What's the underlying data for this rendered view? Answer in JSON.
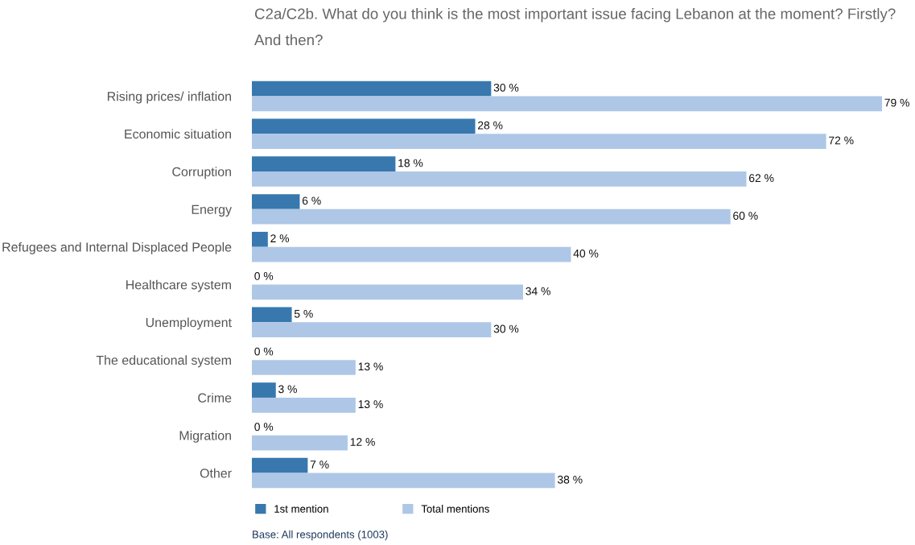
{
  "chart_data": {
    "type": "bar",
    "orientation": "horizontal",
    "title": "C2a/C2b. What do you think is the most important issue facing Lebanon at the moment? Firstly? And then?",
    "categories": [
      "Rising prices/ inflation",
      "Economic situation",
      "Corruption",
      "Energy",
      "Refugees and Internal Displaced People",
      "Healthcare system",
      "Unemployment",
      "The educational system",
      "Crime",
      "Migration",
      "Other"
    ],
    "series": [
      {
        "name": "1st mention",
        "color": "#3878ae",
        "values": [
          30,
          28,
          18,
          6,
          2,
          0,
          5,
          0,
          3,
          0,
          7
        ],
        "value_labels": [
          "30 %",
          "28 %",
          "18 %",
          "6 %",
          "2 %",
          "0 %",
          "5 %",
          "0 %",
          "3 %",
          "0 %",
          "7 %"
        ]
      },
      {
        "name": "Total mentions",
        "color": "#aec7e7",
        "values": [
          79,
          72,
          62,
          60,
          40,
          34,
          30,
          13,
          13,
          12,
          38
        ],
        "value_labels": [
          "79 %",
          "72 %",
          "62 %",
          "60 %",
          "40 %",
          "34 %",
          "30 %",
          "13 %",
          "13 %",
          "12 %",
          "38 %"
        ]
      }
    ],
    "legend": "bottom left",
    "grid": false,
    "annotations": [
      "Base: All respondents (1003)"
    ]
  }
}
